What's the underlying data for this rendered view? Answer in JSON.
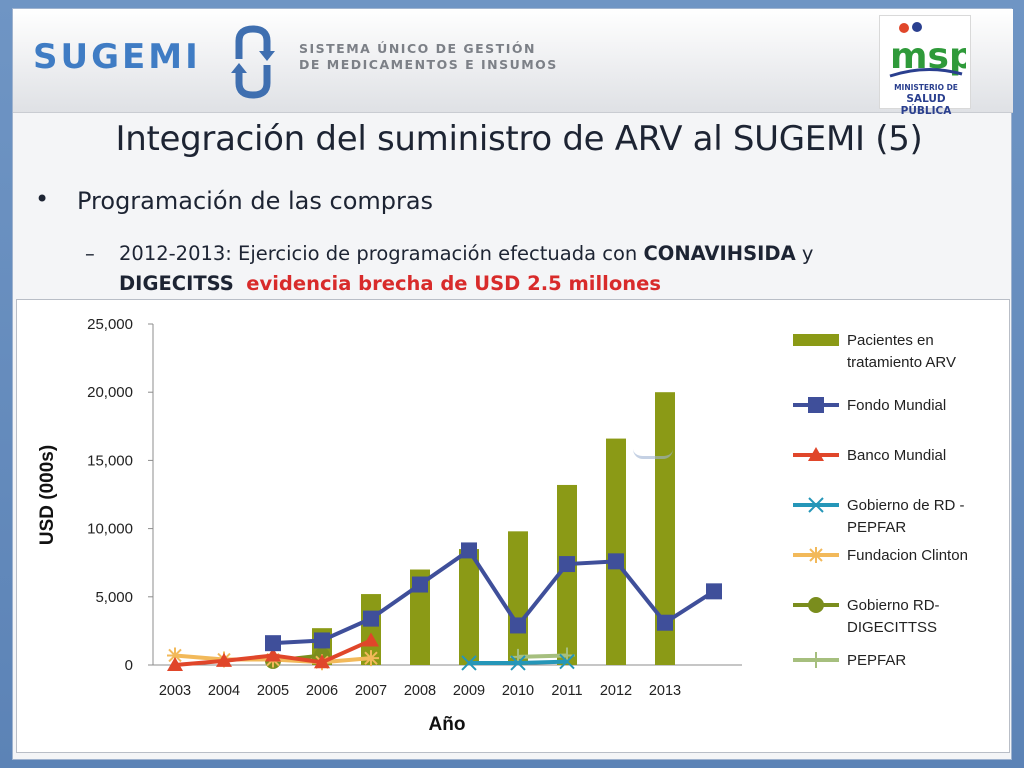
{
  "header": {
    "brand": "SUGEMI",
    "brand_line1": "SISTEMA ÚNICO DE GESTIÓN",
    "brand_line2": "DE MEDICAMENTOS E INSUMOS",
    "msp_logo_text": "msp",
    "msp_caption_line1": "MINISTERIO DE",
    "msp_caption_line2": "SALUD PÚBLICA"
  },
  "title": "Integración del suministro de ARV al SUGEMI (5)",
  "bullet": "Programación de las compras",
  "sub_bullet": {
    "line1_prefix": "2012-2013: Ejercicio de programación efectuada con ",
    "line1_bold": "CONAVIHSIDA",
    "line1_suffix": " y",
    "line2_bold": "DIGECITSS",
    "line2_red": "evidencia brecha de USD 2.5 millones"
  },
  "colors": {
    "bars": "#8b9a16",
    "fondo_mundial": "#3f4f9a",
    "banco_mundial": "#e0462a",
    "gobierno_pepfar": "#2596b8",
    "fundacion_clinton": "#f2b95a",
    "gobierno_digecittss": "#7a8d1d",
    "pepfar": "#a6bf7e"
  },
  "chart_data": {
    "type": "bar",
    "title": "",
    "xlabel": "Año",
    "ylabel": "USD (000s)",
    "ylim": [
      0,
      25000
    ],
    "yticks": [
      0,
      5000,
      10000,
      15000,
      20000,
      25000
    ],
    "ytick_labels": [
      "0",
      "5,000",
      "10,000",
      "15,000",
      "20,000",
      "25,000"
    ],
    "categories": [
      "2003",
      "2004",
      "2005",
      "2006",
      "2007",
      "2008",
      "2009",
      "2010",
      "2011",
      "2012",
      "2013"
    ],
    "grid": false,
    "legend_position": "right",
    "series": [
      {
        "name": "Pacientes en tratamiento ARV",
        "type": "bar",
        "marker": "none",
        "color": "#8b9a16",
        "values": [
          null,
          null,
          null,
          2700,
          5200,
          7000,
          8500,
          9800,
          13200,
          16600,
          20000
        ]
      },
      {
        "name": "Fondo Mundial",
        "type": "line",
        "marker": "square",
        "color": "#3f4f9a",
        "values": [
          null,
          null,
          1600,
          1800,
          3400,
          5900,
          8400,
          2900,
          7400,
          7600,
          3100
        ],
        "extra_point": {
          "after_last_category": true,
          "y": 5400
        }
      },
      {
        "name": "Banco Mundial",
        "type": "line",
        "marker": "triangle",
        "color": "#e0462a",
        "values": [
          0,
          300,
          700,
          200,
          1800,
          null,
          null,
          null,
          null,
          null,
          null
        ]
      },
      {
        "name": "Gobierno de RD - PEPFAR",
        "type": "line",
        "marker": "x",
        "color": "#2596b8",
        "values": [
          null,
          null,
          null,
          null,
          null,
          null,
          150,
          150,
          250,
          null,
          null
        ]
      },
      {
        "name": "Fundacion Clinton",
        "type": "line",
        "marker": "star",
        "color": "#f2b95a",
        "values": [
          700,
          400,
          400,
          200,
          500,
          null,
          null,
          null,
          null,
          null,
          null
        ]
      },
      {
        "name": "Gobierno RD-DIGECITTSS",
        "type": "line",
        "marker": "circle",
        "color": "#7a8d1d",
        "values": [
          null,
          null,
          300,
          700,
          null,
          null,
          null,
          null,
          null,
          null,
          null
        ]
      },
      {
        "name": "PEPFAR",
        "type": "line",
        "marker": "plus",
        "color": "#a6bf7e",
        "values": [
          null,
          null,
          null,
          null,
          null,
          null,
          null,
          600,
          700,
          null,
          null
        ]
      }
    ],
    "legend_entries": [
      {
        "lines": [
          "Pacientes en",
          "tratamiento ARV"
        ],
        "series": 0
      },
      {
        "lines": [
          "Fondo Mundial"
        ],
        "series": 1
      },
      {
        "lines": [
          "Banco Mundial"
        ],
        "series": 2
      },
      {
        "lines": [
          "Gobierno de RD -",
          "PEPFAR"
        ],
        "series": 3
      },
      {
        "lines": [
          "Fundacion Clinton"
        ],
        "series": 4
      },
      {
        "lines": [
          "Gobierno RD-",
          "DIGECITTSS"
        ],
        "series": 5
      },
      {
        "lines": [
          "PEPFAR"
        ],
        "series": 6
      }
    ]
  }
}
